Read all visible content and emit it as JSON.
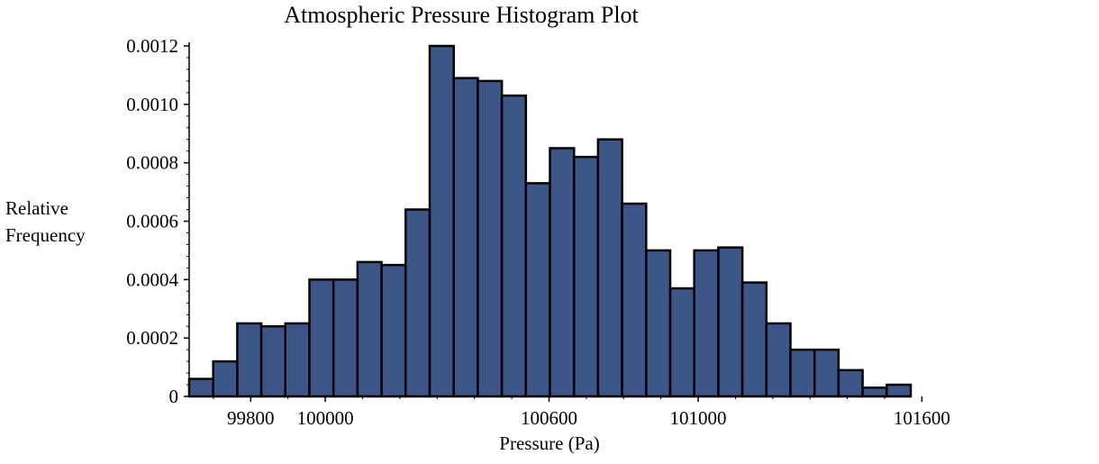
{
  "chart_data": {
    "type": "bar",
    "title": "Atmospheric Pressure Histogram Plot",
    "xlabel": "Pressure (Pa)",
    "ylabel_lines": [
      "Relative",
      "Frequency"
    ],
    "bin_start": 99635,
    "bin_width": 64.5,
    "values": [
      6e-05,
      0.00012,
      0.00025,
      0.00024,
      0.00025,
      0.0004,
      0.0004,
      0.00046,
      0.00045,
      0.00064,
      0.0012,
      0.00109,
      0.00108,
      0.00103,
      0.00073,
      0.00085,
      0.00082,
      0.00088,
      0.00066,
      0.0005,
      0.00037,
      0.0005,
      0.00051,
      0.00039,
      0.00025,
      0.00016,
      0.00016,
      9e-05,
      3e-05,
      4e-05
    ],
    "xlim": [
      99635,
      101570
    ],
    "ylim": [
      0,
      0.0012
    ],
    "x_ticks": [
      {
        "value": 99800,
        "label": "99800"
      },
      {
        "value": 100000,
        "label": "100000"
      },
      {
        "value": 100600,
        "label": "100600"
      },
      {
        "value": 101000,
        "label": "101000"
      },
      {
        "value": 101600,
        "label": "101600"
      }
    ],
    "y_ticks": [
      {
        "value": 0,
        "label": "0"
      },
      {
        "value": 0.0002,
        "label": "0.0002"
      },
      {
        "value": 0.0004,
        "label": "0.0004"
      },
      {
        "value": 0.0006,
        "label": "0.0006"
      },
      {
        "value": 0.0008,
        "label": "0.0008"
      },
      {
        "value": 0.001,
        "label": "0.0010"
      },
      {
        "value": 0.0012,
        "label": "0.0012"
      }
    ],
    "bar_color": "#3d5688",
    "bar_edge_color": "#000000",
    "grid": false
  }
}
